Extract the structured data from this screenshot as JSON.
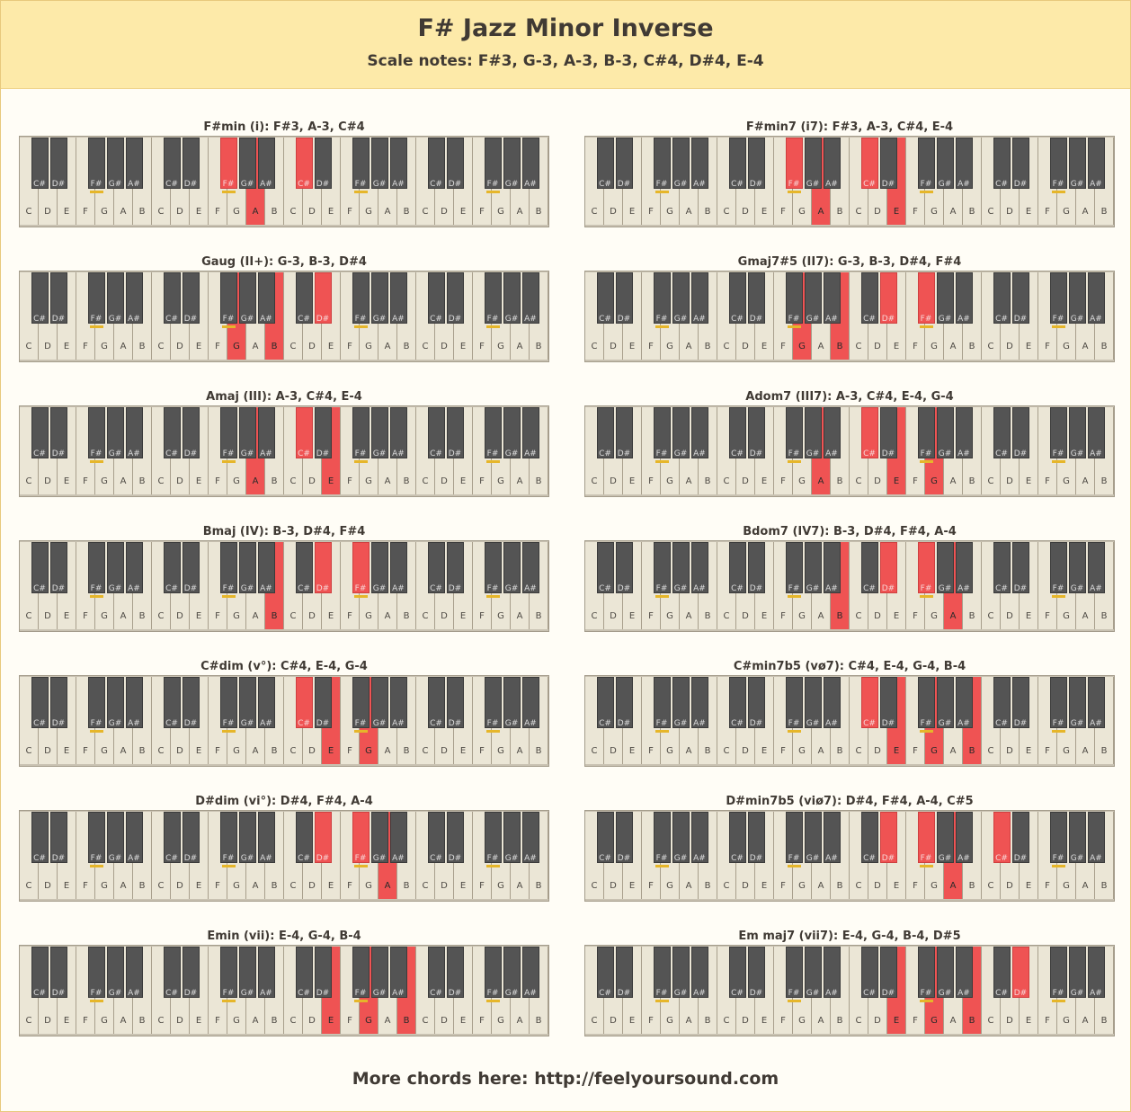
{
  "header": {
    "title": "F# Jazz Minor Inverse",
    "subtitle": "Scale notes: F#3, G-3, A-3, B-3, C#4, D#4, E-4"
  },
  "keyboard": {
    "white_keys": [
      "C",
      "D",
      "E",
      "F",
      "G",
      "A",
      "B",
      "C",
      "D",
      "E",
      "F",
      "G",
      "A",
      "B",
      "C",
      "D",
      "E",
      "F",
      "G",
      "A",
      "B",
      "C",
      "D",
      "E",
      "F",
      "G",
      "A",
      "B"
    ],
    "black_keys": [
      "C#",
      "D#",
      "F#",
      "G#",
      "A#",
      "C#",
      "D#",
      "F#",
      "G#",
      "A#",
      "C#",
      "D#",
      "F#",
      "G#",
      "A#",
      "C#",
      "D#",
      "F#",
      "G#",
      "A#"
    ],
    "colors": {
      "highlight": "#ef5353",
      "white_key": "#ebe6d6",
      "black_key": "#545454",
      "marker": "#e6b62a"
    }
  },
  "chords": [
    {
      "title": "F#min (i): F#3, A-3, C#4",
      "white": [
        12
      ],
      "black": [
        7,
        10
      ]
    },
    {
      "title": "F#min7 (i7): F#3, A-3, C#4, E-4",
      "white": [
        12,
        16
      ],
      "black": [
        7,
        10
      ]
    },
    {
      "title": "Gaug (II+): G-3, B-3, D#4",
      "white": [
        11,
        13
      ],
      "black": [
        11
      ]
    },
    {
      "title": "Gmaj7#5 (II7): G-3, B-3, D#4, F#4",
      "white": [
        11,
        13
      ],
      "black": [
        11,
        12
      ]
    },
    {
      "title": "Amaj (III): A-3, C#4, E-4",
      "white": [
        12,
        16
      ],
      "black": [
        10
      ]
    },
    {
      "title": "Adom7 (III7): A-3, C#4, E-4, G-4",
      "white": [
        12,
        16,
        18
      ],
      "black": [
        10
      ]
    },
    {
      "title": "Bmaj (IV): B-3, D#4, F#4",
      "white": [
        13
      ],
      "black": [
        11,
        12
      ]
    },
    {
      "title": "Bdom7 (IV7): B-3, D#4, F#4, A-4",
      "white": [
        13,
        19
      ],
      "black": [
        11,
        12
      ]
    },
    {
      "title": "C#dim (v°): C#4, E-4, G-4",
      "white": [
        16,
        18
      ],
      "black": [
        10
      ]
    },
    {
      "title": "C#min7b5 (vø7): C#4, E-4, G-4, B-4",
      "white": [
        16,
        18,
        20
      ],
      "black": [
        10
      ]
    },
    {
      "title": "D#dim (vi°): D#4, F#4, A-4",
      "white": [
        19
      ],
      "black": [
        11,
        12
      ]
    },
    {
      "title": "D#min7b5 (viø7): D#4, F#4, A-4, C#5",
      "white": [
        19
      ],
      "black": [
        11,
        12,
        15
      ]
    },
    {
      "title": "Emin (vii): E-4, G-4, B-4",
      "white": [
        16,
        18,
        20
      ],
      "black": []
    },
    {
      "title": "Em maj7 (vii7): E-4, G-4, B-4, D#5",
      "white": [
        16,
        18,
        20
      ],
      "black": [
        16
      ]
    }
  ],
  "footer": {
    "text": "More chords here:  http://feelyoursound.com"
  }
}
